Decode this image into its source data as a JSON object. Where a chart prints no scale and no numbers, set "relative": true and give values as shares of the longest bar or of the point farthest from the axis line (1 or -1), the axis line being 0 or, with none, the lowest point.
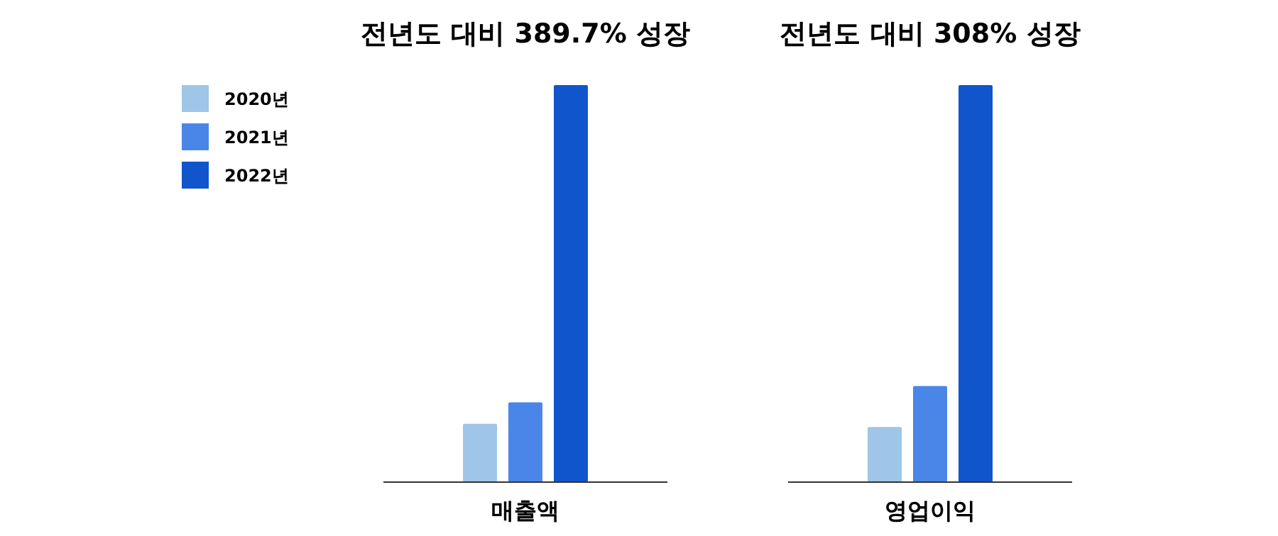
{
  "chart_data": [
    {
      "type": "bar",
      "title": "전년도 대비 389.7% 성장",
      "categories": [
        "매출액"
      ],
      "relative": true,
      "legend": "left",
      "series": [
        {
          "name": "2020년",
          "color": "#9fc5e8",
          "values": [
            0.147
          ]
        },
        {
          "name": "2021년",
          "color": "#4a86e8",
          "values": [
            0.201
          ]
        },
        {
          "name": "2022년",
          "color": "#1155cc",
          "values": [
            1
          ]
        }
      ]
    },
    {
      "type": "bar",
      "title": "전년도 대비 308% 성장",
      "categories": [
        "영업이익"
      ],
      "relative": true,
      "series": [
        {
          "color": "#9fc5e8",
          "values": [
            0.139
          ]
        },
        {
          "color": "#4a86e8",
          "values": [
            0.242
          ]
        },
        {
          "color": "#1155cc",
          "values": [
            1
          ]
        }
      ]
    }
  ]
}
